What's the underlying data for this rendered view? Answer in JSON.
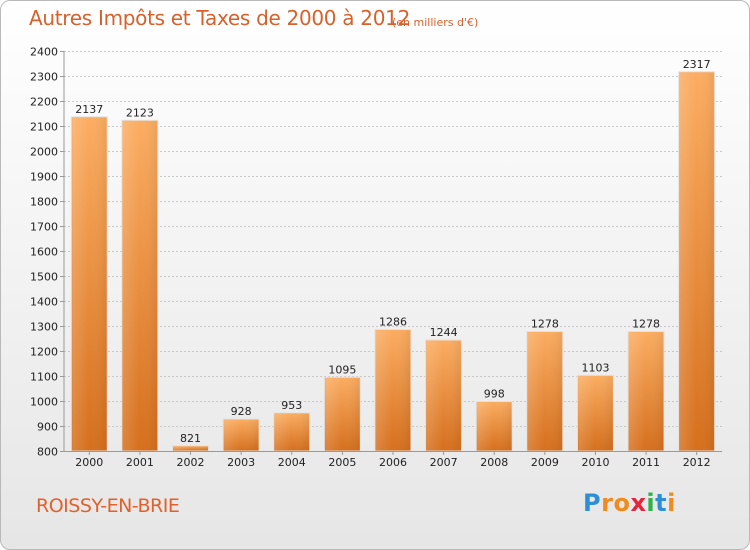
{
  "header": {
    "title": "Autres Impôts et Taxes de 2000 à 2012",
    "subtitle": "(en milliers d'€)"
  },
  "footer": {
    "city": "ROISSY-EN-BRIE",
    "logo_letters": [
      "P",
      "r",
      "o",
      "x",
      "i",
      "t",
      "i"
    ],
    "logo_colors": [
      "#2f8fd6",
      "#f08c1f",
      "#f08c1f",
      "#e5243b",
      "#2fb14b",
      "#2f8fd6",
      "#f08c1f"
    ]
  },
  "colors": {
    "bar_light": "#f9a75a",
    "bar_dark": "#d7701e",
    "title": "#d8602a",
    "grid": "#c8c8c8"
  },
  "chart_data": {
    "type": "bar",
    "title": "Autres Impôts et Taxes de 2000 à 2012",
    "subtitle": "(en milliers d'€)",
    "categories": [
      "2000",
      "2001",
      "2002",
      "2003",
      "2004",
      "2005",
      "2006",
      "2007",
      "2008",
      "2009",
      "2010",
      "2011",
      "2012"
    ],
    "values": [
      2137,
      2123,
      821,
      928,
      953,
      1095,
      1286,
      1244,
      998,
      1278,
      1103,
      1278,
      2317
    ],
    "ylim": [
      800,
      2400
    ],
    "yticks": [
      800,
      900,
      1000,
      1100,
      1200,
      1300,
      1400,
      1500,
      1600,
      1700,
      1800,
      1900,
      2000,
      2100,
      2200,
      2300,
      2400
    ],
    "grid": true,
    "xlabel": "",
    "ylabel": ""
  }
}
